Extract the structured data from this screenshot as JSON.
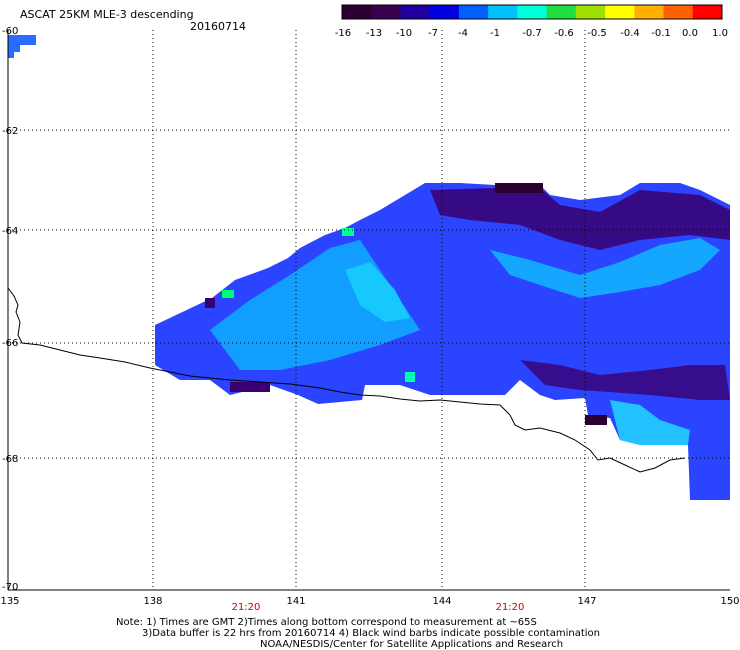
{
  "header": {
    "title": "ASCAT 25KM MLE-3 descending",
    "date": "20160714"
  },
  "colorbar": {
    "labels": [
      "-16",
      "-13",
      "-10",
      "-7",
      "-4",
      "-1",
      "-0.7",
      "-0.6",
      "-0.5",
      "-0.4",
      "-0.1",
      "0.0",
      "1.0"
    ],
    "colors": [
      "#2a0030",
      "#3a0050",
      "#2000a0",
      "#0000e0",
      "#0060ff",
      "#00c0ff",
      "#00ffd8",
      "#20e040",
      "#a0e000",
      "#ffff00",
      "#ffb000",
      "#ff6000",
      "#ff0000"
    ]
  },
  "axes": {
    "lon_ticks": [
      "135",
      "138",
      "141",
      "144",
      "147",
      "150"
    ],
    "lat_ticks": [
      "-60",
      "-62",
      "-64",
      "-66",
      "-68",
      "-70"
    ],
    "time_labels": [
      "21:20",
      "21:20"
    ],
    "time_color": "#cc0000"
  },
  "notes": {
    "line1": "Note: 1) Times are GMT 2)Times along bottom correspond to measurement at ~65S",
    "line2": "3)Data buffer is 22 hrs from 20160714 4) Black wind barbs indicate possible contamination",
    "line3": "NOAA/NESDIS/Center for Satellite Applications and Research"
  }
}
